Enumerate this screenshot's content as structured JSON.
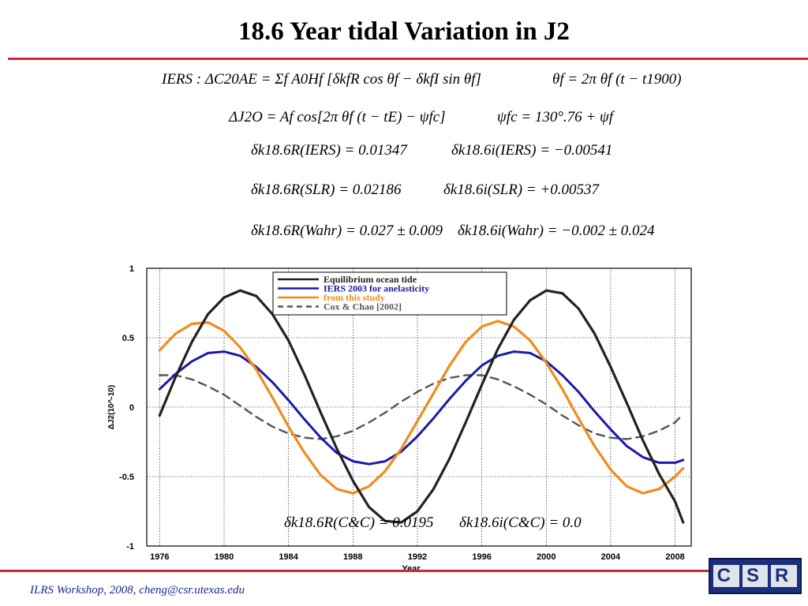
{
  "slide": {
    "title": "18.6 Year tidal Variation in J2",
    "footer": "ILRS Workshop, 2008,  cheng@csr.utexas.edu",
    "logo_text": "CSR"
  },
  "equations": {
    "iers_formula": "IERS :   ΔC20AE = Σf A0Hf [δkfR cos θf − δkfI sin θf]",
    "theta_formula": "θf = 2π θ̇f (t − t1900)",
    "dj2_formula": "ΔJ2O = Af cos[2π θ̇f (t − tE) − ψfc]",
    "psi_formula": "ψfc = 130°.76 + ψf",
    "k_r_iers": "δk18.6R(IERS) = 0.01347",
    "k_i_iers": "δk18.6i(IERS) = −0.00541",
    "k_r_slr": "δk18.6R(SLR) = 0.02186",
    "k_i_slr": "δk18.6i(SLR) = +0.00537",
    "k_r_wahr": "δk18.6R(Wahr) = 0.027 ± 0.009",
    "k_i_wahr": "δk18.6i(Wahr) = −0.002 ± 0.024",
    "k_r_cc": "δk18.6R(C&C) = 0.0195",
    "k_i_cc": "δk18.6i(C&C) = 0.0"
  },
  "colors": {
    "accent_rule": "#c8283c",
    "equilibrium": "#222222",
    "iers": "#1a1aa8",
    "this_study": "#f08c1e",
    "cox_chao": "#555555"
  },
  "chart_data": {
    "type": "line",
    "xlabel": "Year",
    "ylabel": "ΔJ2(10^-10)",
    "xlim": [
      1975.2,
      2009
    ],
    "ylim": [
      -1,
      1
    ],
    "x_ticks": [
      1976,
      1980,
      1984,
      1988,
      1992,
      1996,
      2000,
      2004,
      2008
    ],
    "y_ticks": [
      -1,
      -0.5,
      0,
      0.5,
      1
    ],
    "x_tick_labels": [
      "1976",
      "1980",
      "1984",
      "1988",
      "1992",
      "1996",
      "2000",
      "2004",
      "2008"
    ],
    "y_tick_labels": [
      "-1",
      "-0.5",
      "0",
      "0.5",
      "1"
    ],
    "grid": true,
    "legend_position": "top",
    "series": [
      {
        "name": "Equilibrium ocean tide",
        "x": [
          1976,
          1977,
          1978,
          1979,
          1980,
          1981,
          1982,
          1983,
          1984,
          1985,
          1986,
          1987,
          1988,
          1989,
          1990,
          1991,
          1992,
          1993,
          1994,
          1995,
          1996,
          1997,
          1998,
          1999,
          2000,
          2001,
          2002,
          2003,
          2004,
          2005,
          2006,
          2007,
          2008,
          2008.5
        ],
        "y": [
          -0.06,
          0.22,
          0.47,
          0.67,
          0.79,
          0.84,
          0.8,
          0.67,
          0.48,
          0.23,
          -0.04,
          -0.3,
          -0.53,
          -0.72,
          -0.82,
          -0.83,
          -0.75,
          -0.59,
          -0.37,
          -0.11,
          0.16,
          0.42,
          0.63,
          0.77,
          0.84,
          0.82,
          0.71,
          0.53,
          0.29,
          0.03,
          -0.24,
          -0.48,
          -0.68,
          -0.83
        ]
      },
      {
        "name": "IERS 2003 for anelasticity",
        "x": [
          1976,
          1977,
          1978,
          1979,
          1980,
          1981,
          1982,
          1983,
          1984,
          1985,
          1986,
          1987,
          1988,
          1989,
          1990,
          1991,
          1992,
          1993,
          1994,
          1995,
          1996,
          1997,
          1998,
          1999,
          2000,
          2001,
          2002,
          2003,
          2004,
          2005,
          2006,
          2007,
          2008,
          2008.5
        ],
        "y": [
          0.13,
          0.24,
          0.33,
          0.39,
          0.4,
          0.37,
          0.29,
          0.18,
          0.05,
          -0.09,
          -0.22,
          -0.33,
          -0.39,
          -0.41,
          -0.39,
          -0.32,
          -0.21,
          -0.08,
          0.06,
          0.19,
          0.3,
          0.37,
          0.4,
          0.39,
          0.33,
          0.23,
          0.11,
          -0.03,
          -0.16,
          -0.28,
          -0.36,
          -0.4,
          -0.4,
          -0.38
        ]
      },
      {
        "name": "from this study",
        "x": [
          1976,
          1977,
          1978,
          1979,
          1980,
          1981,
          1982,
          1983,
          1984,
          1985,
          1986,
          1987,
          1988,
          1989,
          1990,
          1991,
          1992,
          1993,
          1994,
          1995,
          1996,
          1997,
          1998,
          1999,
          2000,
          2001,
          2002,
          2003,
          2004,
          2005,
          2006,
          2007,
          2008,
          2008.5
        ],
        "y": [
          0.41,
          0.53,
          0.6,
          0.61,
          0.55,
          0.43,
          0.27,
          0.07,
          -0.14,
          -0.33,
          -0.49,
          -0.59,
          -0.62,
          -0.57,
          -0.46,
          -0.3,
          -0.1,
          0.1,
          0.3,
          0.47,
          0.58,
          0.62,
          0.58,
          0.48,
          0.32,
          0.13,
          -0.08,
          -0.28,
          -0.45,
          -0.57,
          -0.62,
          -0.59,
          -0.5,
          -0.44
        ]
      },
      {
        "name": "Cox & Chao [2002]",
        "x": [
          1976,
          1977,
          1978,
          1979,
          1980,
          1981,
          1982,
          1983,
          1984,
          1985,
          1986,
          1987,
          1988,
          1989,
          1990,
          1991,
          1992,
          1993,
          1994,
          1995,
          1996,
          1997,
          1998,
          1999,
          2000,
          2001,
          2002,
          2003,
          2004,
          2005,
          2006,
          2007,
          2008,
          2008.5
        ],
        "y": [
          0.23,
          0.23,
          0.2,
          0.15,
          0.09,
          0.01,
          -0.07,
          -0.14,
          -0.19,
          -0.22,
          -0.23,
          -0.21,
          -0.17,
          -0.11,
          -0.04,
          0.04,
          0.11,
          0.17,
          0.21,
          0.23,
          0.23,
          0.2,
          0.15,
          0.09,
          0.02,
          -0.06,
          -0.13,
          -0.19,
          -0.22,
          -0.23,
          -0.21,
          -0.17,
          -0.11,
          -0.05
        ]
      }
    ]
  }
}
